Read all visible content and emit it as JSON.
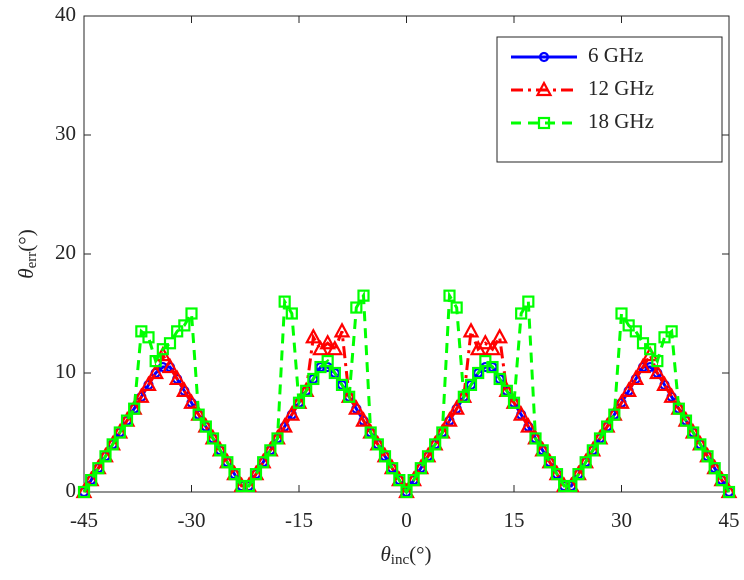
{
  "chart_data": {
    "type": "line",
    "x_label": {
      "symbol": "θ",
      "subscript": "inc",
      "suffix": "(°)"
    },
    "y_label": {
      "symbol": "θ",
      "subscript": "err",
      "suffix": "(°)"
    },
    "x": [
      -45,
      -44,
      -43,
      -42,
      -41,
      -40,
      -39,
      -38,
      -37,
      -36,
      -35,
      -34,
      -33,
      -32,
      -31,
      -30,
      -29,
      -28,
      -27,
      -26,
      -25,
      -24,
      -23,
      -22,
      -21,
      -20,
      -19,
      -18,
      -17,
      -16,
      -15,
      -14,
      -13,
      -12,
      -11,
      -10,
      -9,
      -8,
      -7,
      -6,
      -5,
      -4,
      -3,
      -2,
      -1,
      0,
      1,
      2,
      3,
      4,
      5,
      6,
      7,
      8,
      9,
      10,
      11,
      12,
      13,
      14,
      15,
      16,
      17,
      18,
      19,
      20,
      21,
      22,
      23,
      24,
      25,
      26,
      27,
      28,
      29,
      30,
      31,
      32,
      33,
      34,
      35,
      36,
      37,
      38,
      39,
      40,
      41,
      42,
      43,
      44,
      45
    ],
    "series": [
      {
        "name": "6 GHz",
        "color": "#0000ff",
        "line_style": "solid",
        "marker": "circle",
        "values": [
          0,
          1,
          2,
          3,
          4,
          5,
          6,
          7,
          8,
          9,
          10,
          10.5,
          10.5,
          9.5,
          8.5,
          7.5,
          6.5,
          5.5,
          4.5,
          3.5,
          2.5,
          1.5,
          0.5,
          0.5,
          1.5,
          2.5,
          3.5,
          4.5,
          5.5,
          6.5,
          7.5,
          8.5,
          9.5,
          10.5,
          10.5,
          10,
          9,
          8,
          7,
          6,
          5,
          4,
          3,
          2,
          1,
          0,
          1,
          2,
          3,
          4,
          5,
          6,
          7,
          8,
          9,
          10,
          10.5,
          10.5,
          9.5,
          8.5,
          7.5,
          6.5,
          5.5,
          4.5,
          3.5,
          2.5,
          1.5,
          0.5,
          0.5,
          1.5,
          2.5,
          3.5,
          4.5,
          5.5,
          6.5,
          7.5,
          8.5,
          9.5,
          10.5,
          10.5,
          10,
          9,
          8,
          7,
          6,
          5,
          4,
          3,
          2,
          1,
          0
        ]
      },
      {
        "name": "12 GHz",
        "color": "#ff0000",
        "line_style": "dashdot",
        "marker": "triangle",
        "values": [
          0,
          1,
          2,
          3,
          4,
          5,
          6,
          7,
          8,
          9,
          10,
          11.5,
          10.5,
          9.5,
          8.5,
          7.5,
          6.5,
          5.5,
          4.5,
          3.5,
          2.5,
          1.5,
          0.5,
          0.5,
          1.5,
          2.5,
          3.5,
          4.5,
          5.5,
          6.5,
          7.5,
          8.5,
          13,
          12,
          12.5,
          12,
          13.5,
          8,
          7,
          6,
          5,
          4,
          3,
          2,
          1,
          0,
          1,
          2,
          3,
          4,
          5,
          6,
          7,
          8,
          13.5,
          12,
          12.5,
          12,
          13,
          8.5,
          7.5,
          6.5,
          5.5,
          4.5,
          3.5,
          2.5,
          1.5,
          0.5,
          0.5,
          1.5,
          2.5,
          3.5,
          4.5,
          5.5,
          6.5,
          7.5,
          8.5,
          9.5,
          10.5,
          11.5,
          10,
          9,
          8,
          7,
          6,
          5,
          4,
          3,
          2,
          1,
          0
        ]
      },
      {
        "name": "18 GHz",
        "color": "#00ff00",
        "line_style": "dashed",
        "marker": "square",
        "values": [
          0,
          1,
          2,
          3,
          4,
          5,
          6,
          7,
          13.5,
          13,
          11,
          12,
          12.5,
          13.5,
          14,
          15,
          6.5,
          5.5,
          4.5,
          3.5,
          2.5,
          1.5,
          0.5,
          0.5,
          1.5,
          2.5,
          3.5,
          4.5,
          16,
          15,
          7.5,
          8.5,
          9.5,
          10.5,
          11,
          10,
          9,
          8,
          15.5,
          16.5,
          5,
          4,
          3,
          2,
          1,
          0,
          1,
          2,
          3,
          4,
          5,
          16.5,
          15.5,
          8,
          9,
          10,
          11,
          10.5,
          9.5,
          8.5,
          7.5,
          15,
          16,
          4.5,
          3.5,
          2.5,
          1.5,
          0.5,
          0.5,
          1.5,
          2.5,
          3.5,
          4.5,
          5.5,
          6.5,
          15,
          14,
          13.5,
          12.5,
          12,
          11,
          13,
          13.5,
          7,
          6,
          5,
          4,
          3,
          2,
          1,
          0
        ]
      }
    ],
    "xlim": [
      -45,
      45
    ],
    "xticks": [
      -45,
      -30,
      -15,
      0,
      15,
      30,
      45
    ],
    "ylim": [
      0,
      40
    ],
    "yticks": [
      0,
      10,
      20,
      30,
      40
    ],
    "legend": "upper right"
  }
}
